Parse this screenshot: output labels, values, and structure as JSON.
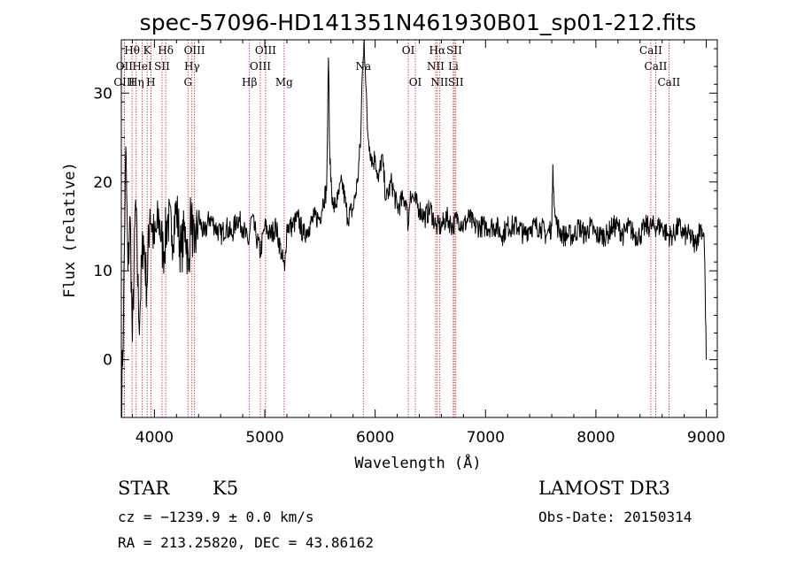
{
  "chart_data": {
    "type": "line",
    "title": "spec-57096-HD141351N461930B01_sp01-212.fits",
    "xlabel": "Wavelength (Å)",
    "ylabel": "Flux (relative)",
    "xlim": [
      3700,
      9100
    ],
    "ylim": [
      -6.5,
      36
    ],
    "xticks": [
      4000,
      5000,
      6000,
      7000,
      8000,
      9000
    ],
    "yticks": [
      0,
      10,
      20,
      30
    ],
    "series": [
      {
        "name": "flux",
        "x": [
          3700,
          3720,
          3740,
          3760,
          3780,
          3800,
          3830,
          3860,
          3900,
          3930,
          3960,
          4000,
          4040,
          4080,
          4120,
          4160,
          4200,
          4240,
          4280,
          4310,
          4330,
          4360,
          4400,
          4450,
          4500,
          4550,
          4600,
          4650,
          4700,
          4750,
          4800,
          4850,
          4880,
          4920,
          4960,
          5000,
          5050,
          5100,
          5150,
          5180,
          5200,
          5250,
          5300,
          5350,
          5400,
          5450,
          5500,
          5530,
          5560,
          5577,
          5590,
          5620,
          5660,
          5700,
          5750,
          5800,
          5840,
          5870,
          5880,
          5893,
          5900,
          5910,
          5930,
          5950,
          5980,
          6000,
          6030,
          6060,
          6100,
          6150,
          6200,
          6250,
          6280,
          6300,
          6320,
          6350,
          6400,
          6450,
          6500,
          6550,
          6563,
          6600,
          6650,
          6700,
          6750,
          6800,
          6850,
          6900,
          6950,
          7000,
          7050,
          7100,
          7150,
          7200,
          7250,
          7300,
          7350,
          7400,
          7450,
          7500,
          7550,
          7600,
          7610,
          7630,
          7650,
          7700,
          7750,
          7800,
          7850,
          7900,
          7950,
          8000,
          8050,
          8100,
          8150,
          8200,
          8250,
          8300,
          8350,
          8400,
          8450,
          8500,
          8550,
          8600,
          8650,
          8700,
          8750,
          8800,
          8850,
          8900,
          8950,
          8980,
          8990,
          9000
        ],
        "values": [
          -6,
          5,
          24,
          10,
          16,
          2,
          18,
          4,
          14,
          8,
          17,
          13,
          16,
          12,
          16,
          14,
          17,
          12,
          15,
          10,
          17,
          12,
          16,
          14,
          16,
          15,
          14,
          15,
          14,
          16,
          15,
          13,
          16,
          14,
          12,
          15,
          14,
          15,
          12,
          10,
          15,
          15,
          16,
          14,
          15,
          16,
          16,
          18,
          19,
          34,
          22,
          17,
          18,
          20,
          16,
          17,
          20,
          25,
          31,
          34,
          36,
          33,
          26,
          24,
          22,
          23,
          20,
          23,
          18,
          20,
          17,
          18,
          18,
          15,
          19,
          18,
          17,
          16,
          17,
          15,
          15,
          15,
          16,
          15,
          16,
          15,
          16,
          15,
          15,
          15,
          15,
          15,
          14,
          15,
          15,
          15,
          14,
          15,
          15,
          15,
          14,
          15,
          22,
          16,
          15,
          14,
          14,
          14,
          15,
          14,
          15,
          14,
          14,
          14,
          15,
          15,
          14,
          15,
          14,
          14,
          15,
          15,
          15,
          15,
          14,
          14,
          15,
          14,
          14,
          13,
          15,
          14,
          8,
          0
        ]
      }
    ],
    "lines": [
      {
        "name": "Hθ",
        "w": 3797,
        "row": 0
      },
      {
        "name": "OII",
        "w": 3727,
        "row": 1
      },
      {
        "name": "OIII",
        "w": 3727,
        "row": 2
      },
      {
        "name": "K",
        "w": 3934,
        "row": 0
      },
      {
        "name": "HeI",
        "w": 3889,
        "row": 1
      },
      {
        "name": "Hη",
        "w": 3835,
        "row": 2
      },
      {
        "name": "SII",
        "w": 4069,
        "row": 1
      },
      {
        "name": "H",
        "w": 3968,
        "row": 2
      },
      {
        "name": "Hδ",
        "w": 4102,
        "row": 0
      },
      {
        "name": "OIII",
        "w": 4363,
        "row": 0
      },
      {
        "name": "Hγ",
        "w": 4340,
        "row": 1
      },
      {
        "name": "G",
        "w": 4304,
        "row": 2
      },
      {
        "name": "OIII",
        "w": 5007,
        "row": 0
      },
      {
        "name": "OIII",
        "w": 4959,
        "row": 1
      },
      {
        "name": "Hβ",
        "w": 4861,
        "row": 2
      },
      {
        "name": "Mg",
        "w": 5175,
        "row": 2
      },
      {
        "name": "Na",
        "w": 5893,
        "row": 1
      },
      {
        "name": "OI",
        "w": 6300,
        "row": 0
      },
      {
        "name": "OI",
        "w": 6364,
        "row": 2
      },
      {
        "name": "Hα",
        "w": 6563,
        "row": 0
      },
      {
        "name": "NII",
        "w": 6548,
        "row": 1
      },
      {
        "name": "NII",
        "w": 6583,
        "row": 2
      },
      {
        "name": "SII",
        "w": 6717,
        "row": 0
      },
      {
        "name": "Li",
        "w": 6708,
        "row": 1
      },
      {
        "name": "SII",
        "w": 6731,
        "row": 2
      },
      {
        "name": "CaII",
        "w": 8498,
        "row": 0
      },
      {
        "name": "CaII",
        "w": 8542,
        "row": 1
      },
      {
        "name": "CaII",
        "w": 8662,
        "row": 2
      }
    ]
  },
  "info": {
    "class": "STAR",
    "subclass": "K5",
    "survey": "LAMOST DR3",
    "cz": "cz = −1239.9 ± 0.0 km/s",
    "obs_date": "Obs-Date: 20150314",
    "radec": "RA = 213.25820, DEC =  43.86162"
  },
  "colors": {
    "line_marker": "#cc2222",
    "spectrum": "#000000"
  }
}
